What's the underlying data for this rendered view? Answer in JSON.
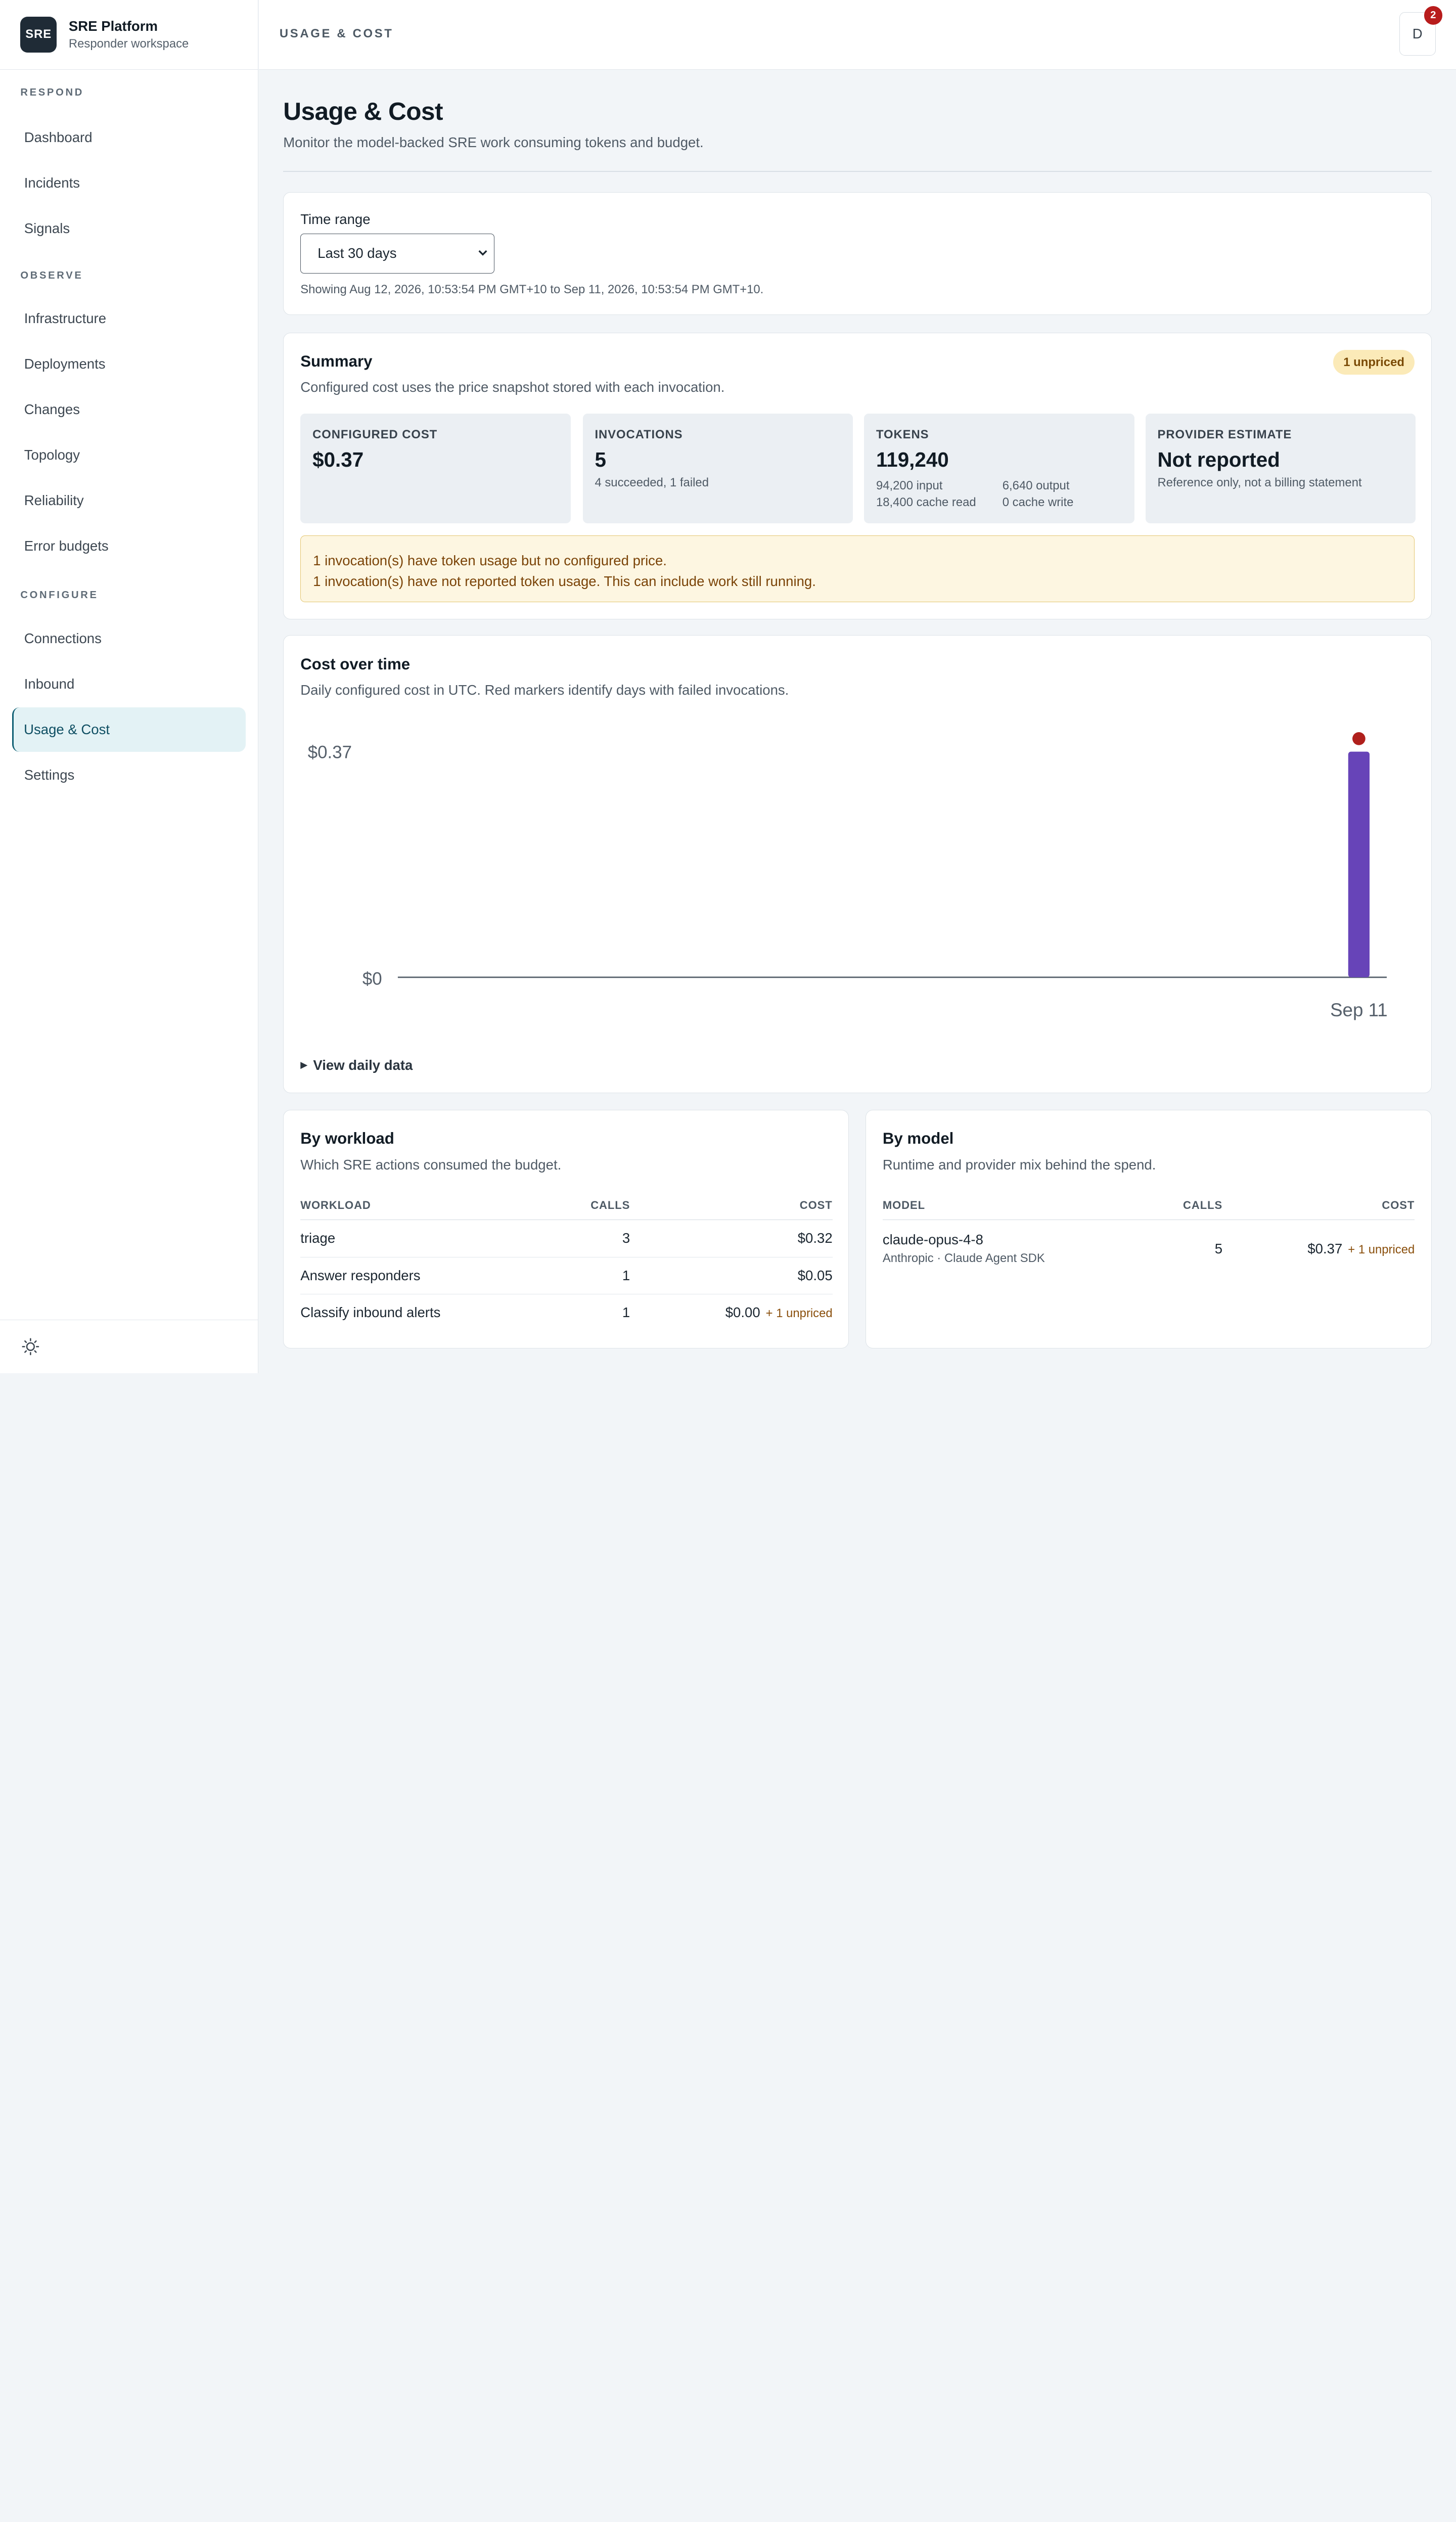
{
  "brand": {
    "logo": "SRE",
    "title": "SRE Platform",
    "subtitle": "Responder workspace"
  },
  "nav": {
    "sections": [
      {
        "label": "RESPOND",
        "items": [
          "Dashboard",
          "Incidents",
          "Signals"
        ]
      },
      {
        "label": "OBSERVE",
        "items": [
          "Infrastructure",
          "Deployments",
          "Changes",
          "Topology",
          "Reliability",
          "Error budgets"
        ]
      },
      {
        "label": "CONFIGURE",
        "items": [
          "Connections",
          "Inbound",
          "Usage & Cost",
          "Settings"
        ]
      }
    ],
    "active": "Usage & Cost"
  },
  "footer": {
    "theme_icon": "sun-icon"
  },
  "topbar": {
    "breadcrumb": "USAGE & COST",
    "avatar_initial": "D",
    "notification_count": "2"
  },
  "page": {
    "title": "Usage & Cost",
    "description": "Monitor the model-backed SRE work consuming tokens and budget."
  },
  "time_range": {
    "label": "Time range",
    "selected": "Last 30 days",
    "note": "Showing Aug 12, 2026, 10:53:54 PM GMT+10 to Sep 11, 2026, 10:53:54 PM GMT+10."
  },
  "summary": {
    "title": "Summary",
    "description": "Configured cost uses the price snapshot stored with each invocation.",
    "badge": "1 unpriced",
    "stats": {
      "configured_cost": {
        "label": "CONFIGURED COST",
        "value": "$0.37"
      },
      "invocations": {
        "label": "INVOCATIONS",
        "value": "5",
        "sub": "4 succeeded, 1 failed"
      },
      "tokens": {
        "label": "TOKENS",
        "value": "119,240",
        "input": "94,200 input",
        "output": "6,640 output",
        "cache_read": "18,400 cache read",
        "cache_write": "0 cache write"
      },
      "provider_estimate": {
        "label": "PROVIDER ESTIMATE",
        "value": "Not reported",
        "sub": "Reference only, not a billing statement"
      }
    },
    "warnings": [
      "1 invocation(s) have token usage but no configured price.",
      "1 invocation(s) have not reported token usage. This can include work still running."
    ]
  },
  "cost_chart": {
    "title": "Cost over time",
    "description": "Daily configured cost in UTC. Red markers identify days with failed invocations.",
    "details_label": "View daily data",
    "colors": {
      "bar": "#6744b8",
      "failed_marker": "#b0201c",
      "axis": "#56606b"
    }
  },
  "chart_data": {
    "type": "bar",
    "categories": [
      "Sep 11"
    ],
    "values": [
      0.37
    ],
    "failed_marker": [
      true
    ],
    "ytick_labels": [
      "$0",
      "$0.37"
    ],
    "ylim": [
      0,
      0.37
    ],
    "grid": false,
    "title": "Cost over time"
  },
  "by_workload": {
    "title": "By workload",
    "description": "Which SRE actions consumed the budget.",
    "columns": [
      "WORKLOAD",
      "CALLS",
      "COST"
    ],
    "rows": [
      {
        "workload": "triage",
        "calls": "3",
        "cost": "$0.32",
        "note": ""
      },
      {
        "workload": "Answer responders",
        "calls": "1",
        "cost": "$0.05",
        "note": ""
      },
      {
        "workload": "Classify inbound alerts",
        "calls": "1",
        "cost": "$0.00",
        "note": "+ 1 unpriced"
      }
    ]
  },
  "by_model": {
    "title": "By model",
    "description": "Runtime and provider mix behind the spend.",
    "columns": [
      "MODEL",
      "CALLS",
      "COST"
    ],
    "rows": [
      {
        "model": "claude-opus-4-8",
        "provider": "Anthropic · Claude Agent SDK",
        "calls": "5",
        "cost": "$0.37",
        "note": "+ 1 unpriced"
      }
    ]
  }
}
